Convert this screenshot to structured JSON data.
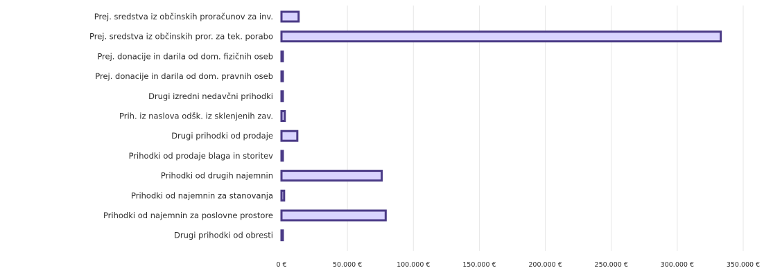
{
  "chart_data": {
    "type": "bar",
    "orientation": "horizontal",
    "categories": [
      "Prej. sredstva iz občinskih proračunov za inv.",
      "Prej. sredstva iz občinskih pror. za tek. porabo",
      "Prej. donacije in darila od dom. fizičnih oseb",
      "Prej. donacije in darila od dom. pravnih oseb",
      "Drugi izredni nedavčni prihodki",
      "Prih. iz naslova odšk. iz sklenjenih zav.",
      "Drugi prihodki od prodaje",
      "Prihodki od prodaje blaga in storitev",
      "Prihodki od drugih najemnin",
      "Prihodki od najemnin za stanovanja",
      "Prihodki od najemnin za poslovne prostore",
      "Drugi prihodki od obresti"
    ],
    "values": [
      13000,
      333000,
      800,
      500,
      1000,
      2500,
      12000,
      500,
      76000,
      2000,
      79000,
      1000
    ],
    "x_ticks": [
      "0 €",
      "50.000 €",
      "100.000 €",
      "150.000 €",
      "200.000 €",
      "250.000 €",
      "300.000 €",
      "350.000 €"
    ],
    "xlim": [
      0,
      350000
    ],
    "grid": true,
    "colors": {
      "bar_fill": "#d9d4ff",
      "bar_stroke": "#4a3a86",
      "grid": "#e6e6e6",
      "text": "#2b2b2b"
    }
  }
}
